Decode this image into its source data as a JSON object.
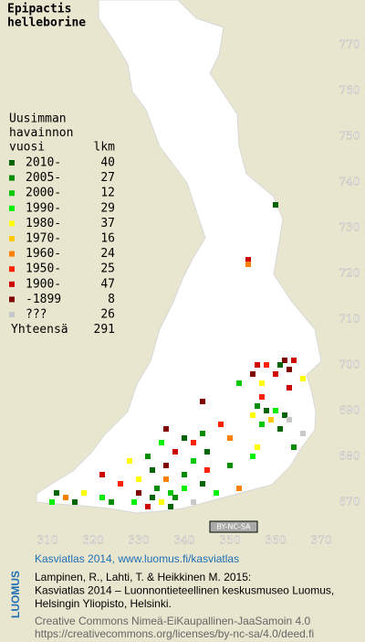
{
  "title": [
    "Epipactis",
    "helleborine"
  ],
  "legend": {
    "heading": [
      "Uusimman",
      "havainnon",
      "vuosi"
    ],
    "count_heading": "lkm",
    "classes": [
      {
        "label": "2010-",
        "count": 40,
        "color": "#006400"
      },
      {
        "label": "2005-",
        "count": 27,
        "color": "#008c00"
      },
      {
        "label": "2000-",
        "count": 12,
        "color": "#00c800"
      },
      {
        "label": "1990-",
        "count": 29,
        "color": "#00f000"
      },
      {
        "label": "1980-",
        "count": 37,
        "color": "#ffff00"
      },
      {
        "label": "1970-",
        "count": 16,
        "color": "#ffc800"
      },
      {
        "label": "1960-",
        "count": 24,
        "color": "#ff8000"
      },
      {
        "label": "1950-",
        "count": 25,
        "color": "#ff2000"
      },
      {
        "label": "1900-",
        "count": 47,
        "color": "#d00000"
      },
      {
        "label": "-1899",
        "count": 8,
        "color": "#800000"
      },
      {
        "label": "???",
        "count": 26,
        "color": "#c8c8c8"
      }
    ],
    "total_label": "Yhteensä",
    "total": 291
  },
  "xticks": [
    310,
    320,
    330,
    340,
    350,
    360,
    370
  ],
  "yticks": [
    670,
    680,
    690,
    700,
    710,
    720,
    730,
    740,
    750,
    760,
    770
  ],
  "xlim": [
    300,
    380
  ],
  "ylim": [
    660,
    780
  ],
  "markers": [
    [
      701,
      362,
      9
    ],
    [
      701,
      364,
      8
    ],
    [
      700,
      356,
      8
    ],
    [
      700,
      358,
      7
    ],
    [
      700,
      361,
      0
    ],
    [
      699,
      363,
      9
    ],
    [
      698,
      360,
      8
    ],
    [
      698,
      355,
      9
    ],
    [
      697,
      366,
      4
    ],
    [
      696,
      352,
      2
    ],
    [
      696,
      357,
      4
    ],
    [
      695,
      363,
      8
    ],
    [
      693,
      357,
      7
    ],
    [
      692,
      344,
      9
    ],
    [
      691,
      356,
      1
    ],
    [
      690,
      358,
      0
    ],
    [
      690,
      360,
      3
    ],
    [
      689,
      355,
      4
    ],
    [
      689,
      362,
      0
    ],
    [
      688,
      359,
      5
    ],
    [
      688,
      363,
      10
    ],
    [
      687,
      348,
      7
    ],
    [
      687,
      357,
      2
    ],
    [
      686,
      361,
      0
    ],
    [
      686,
      336,
      9
    ],
    [
      685,
      344,
      1
    ],
    [
      685,
      366,
      10
    ],
    [
      684,
      340,
      0
    ],
    [
      684,
      350,
      6
    ],
    [
      683,
      335,
      3
    ],
    [
      683,
      342,
      7
    ],
    [
      682,
      356,
      4
    ],
    [
      682,
      364,
      1
    ],
    [
      681,
      338,
      8
    ],
    [
      681,
      345,
      0
    ],
    [
      680,
      332,
      1
    ],
    [
      680,
      355,
      3
    ],
    [
      679,
      328,
      4
    ],
    [
      679,
      342,
      2
    ],
    [
      678,
      336,
      9
    ],
    [
      678,
      350,
      1
    ],
    [
      677,
      333,
      0
    ],
    [
      677,
      345,
      7
    ],
    [
      676,
      322,
      8
    ],
    [
      676,
      340,
      1
    ],
    [
      675,
      330,
      4
    ],
    [
      675,
      336,
      6
    ],
    [
      674,
      344,
      0
    ],
    [
      674,
      326,
      7
    ],
    [
      673,
      334,
      1
    ],
    [
      673,
      340,
      3
    ],
    [
      672,
      312,
      0
    ],
    [
      672,
      318,
      4
    ],
    [
      672,
      330,
      9
    ],
    [
      672,
      337,
      2
    ],
    [
      671,
      314,
      6
    ],
    [
      671,
      322,
      3
    ],
    [
      671,
      333,
      0
    ],
    [
      671,
      338,
      1
    ],
    [
      670,
      311,
      3
    ],
    [
      670,
      316,
      0
    ],
    [
      670,
      324,
      1
    ],
    [
      670,
      329,
      3
    ],
    [
      670,
      335,
      4
    ],
    [
      670,
      342,
      10
    ],
    [
      669,
      332,
      8
    ],
    [
      669,
      337,
      0
    ],
    [
      672,
      347,
      3
    ],
    [
      673,
      352,
      6
    ],
    [
      735,
      360,
      0
    ],
    [
      723,
      354,
      8
    ],
    [
      722,
      354,
      6
    ]
  ],
  "license_badge": "BY-NC-SA",
  "footer": {
    "brand": "LUOMUS",
    "headline": "Kasviatlas 2014, www.luomus.fi/kasviatlas",
    "citation": [
      "Lampinen, R., Lahti, T. & Heikkinen M. 2015:",
      "Kasviatlas 2014 – Luonnontieteellinen keskusmuseo Luomus,",
      "Helsingin Yliopisto, Helsinki."
    ],
    "license": [
      "Creative Commons Nimeä-EiKaupallinen-JaaSamoin 4.0",
      "https://creativecommons.org/licenses/by-nc-sa/4.0/deed.fi"
    ]
  }
}
